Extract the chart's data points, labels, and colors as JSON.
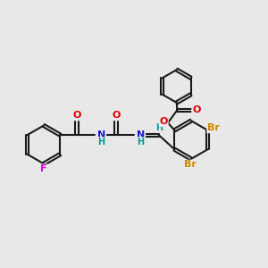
{
  "bg_color": "#e8e8e8",
  "bond_color": "#1a1a1a",
  "bond_lw": 1.5,
  "dbo": 0.055,
  "atom_colors": {
    "O": "#dd0000",
    "N": "#1a1acc",
    "F": "#dd00dd",
    "Br": "#cc8800",
    "H": "#009999"
  },
  "fs": 8.0,
  "fsh": 7.0,
  "fig_size": [
    3.0,
    3.0
  ],
  "dpi": 100
}
